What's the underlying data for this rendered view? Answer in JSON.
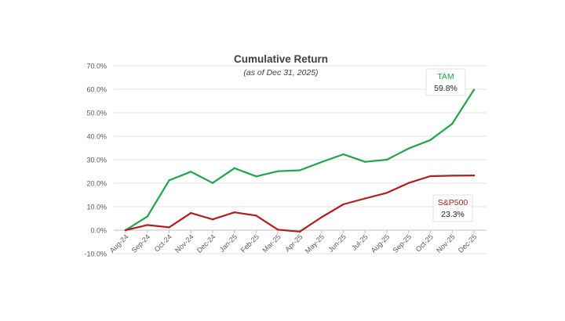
{
  "chart_data": {
    "type": "line",
    "title": "Cumulative Return",
    "subtitle": "(as of Dec 31, 2025)",
    "xlabel": "",
    "ylabel": "",
    "categories": [
      "Aug-24",
      "Sep-24",
      "Oct-24",
      "Nov-24",
      "Dec-24",
      "Jan-25",
      "Feb-25",
      "Mar-25",
      "Apr-25",
      "May-25",
      "Jun-25",
      "Jul-25",
      "Aug-25",
      "Sep-25",
      "Oct-25",
      "Nov-25",
      "Dec-25"
    ],
    "y_ticks": [
      "70.0%",
      "60.0%",
      "50.0%",
      "40.0%",
      "30.0%",
      "20.0%",
      "10.0%",
      "0.0%",
      "-10.0%"
    ],
    "ylim": [
      -10,
      70
    ],
    "grid": true,
    "legend": "none",
    "series": [
      {
        "name": "TAM",
        "color": "#1fa54a",
        "values": [
          0,
          5.8,
          21.2,
          24.9,
          20.1,
          26.4,
          22.9,
          25.1,
          25.5,
          29.0,
          32.3,
          29.1,
          30.0,
          34.8,
          38.4,
          45.3,
          59.8
        ],
        "end_label": "59.8%"
      },
      {
        "name": "S&P500",
        "color": "#b01e1e",
        "values": [
          0,
          2.2,
          1.2,
          7.3,
          4.6,
          7.6,
          6.2,
          0.2,
          -0.6,
          5.5,
          11.0,
          13.5,
          15.9,
          20.1,
          23.0,
          23.2,
          23.3
        ],
        "end_label": "23.3%"
      }
    ]
  }
}
